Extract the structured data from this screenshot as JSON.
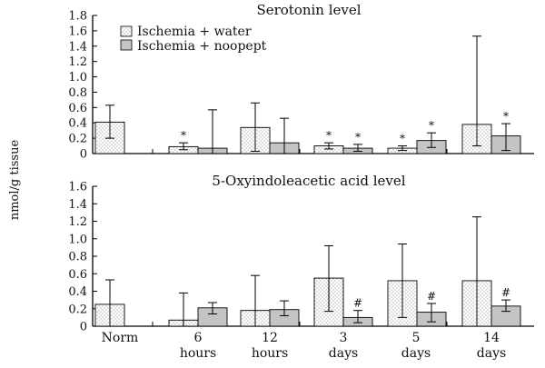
{
  "chart_data": {
    "type": "bar",
    "ylabel": "nmol/g tissue",
    "categories": [
      {
        "line1": "Norm",
        "line2": ""
      },
      {
        "line1": "6",
        "line2": "hours"
      },
      {
        "line1": "12",
        "line2": "hours"
      },
      {
        "line1": "3",
        "line2": "days"
      },
      {
        "line1": "5",
        "line2": "days"
      },
      {
        "line1": "14",
        "line2": "days"
      }
    ],
    "legend": [
      "Ischemia + water",
      "Ischemia + noopept"
    ],
    "colors": {
      "water": "#ffffff",
      "noopept": "#c4c4c4",
      "axis": "#000000"
    },
    "panels": [
      {
        "title": "Serotonin level",
        "ylim": [
          0,
          1.8
        ],
        "yticks": [
          "0",
          "0.2",
          "0.4",
          "0.6",
          "0.8",
          "1.0",
          "1.2",
          "1.4",
          "1.6",
          "1.8"
        ],
        "norm": {
          "value": 0.41,
          "low": 0.2,
          "high": 0.63
        },
        "series": [
          {
            "name": "Ischemia + water",
            "values": [
              0.09,
              0.34,
              0.1,
              0.07,
              0.38
            ],
            "err_low": [
              0.05,
              0.03,
              0.06,
              0.04,
              0.1
            ],
            "err_high": [
              0.14,
              0.66,
              0.14,
              0.1,
              1.53
            ],
            "annotations": [
              "*",
              "",
              "*",
              "*",
              ""
            ]
          },
          {
            "name": "Ischemia + noopept",
            "values": [
              0.07,
              0.14,
              0.07,
              0.17,
              0.23
            ],
            "err_low": [
              0.0,
              0.0,
              0.03,
              0.08,
              0.04
            ],
            "err_high": [
              0.57,
              0.46,
              0.12,
              0.27,
              0.39
            ],
            "annotations": [
              "",
              "",
              "*",
              "*",
              "*"
            ]
          }
        ]
      },
      {
        "title": "5-Oxyindoleacetic acid level",
        "ylim": [
          0,
          1.6
        ],
        "yticks": [
          "0",
          "0.2",
          "0.4",
          "0.6",
          "0.8",
          "1.0",
          "1.2",
          "1.4",
          "1.6"
        ],
        "norm": {
          "value": 0.25,
          "low": 0.0,
          "high": 0.53
        },
        "series": [
          {
            "name": "Ischemia + water",
            "values": [
              0.07,
              0.18,
              0.55,
              0.52,
              0.52
            ],
            "err_low": [
              0.0,
              0.0,
              0.17,
              0.1,
              0.0
            ],
            "err_high": [
              0.38,
              0.58,
              0.92,
              0.94,
              1.25
            ],
            "annotations": [
              "",
              "",
              "",
              "",
              ""
            ]
          },
          {
            "name": "Ischemia + noopept",
            "values": [
              0.21,
              0.19,
              0.1,
              0.16,
              0.23
            ],
            "err_low": [
              0.14,
              0.12,
              0.04,
              0.05,
              0.17
            ],
            "err_high": [
              0.27,
              0.29,
              0.18,
              0.26,
              0.3
            ],
            "annotations": [
              "",
              "",
              "#",
              "#",
              "#"
            ]
          }
        ]
      }
    ]
  }
}
